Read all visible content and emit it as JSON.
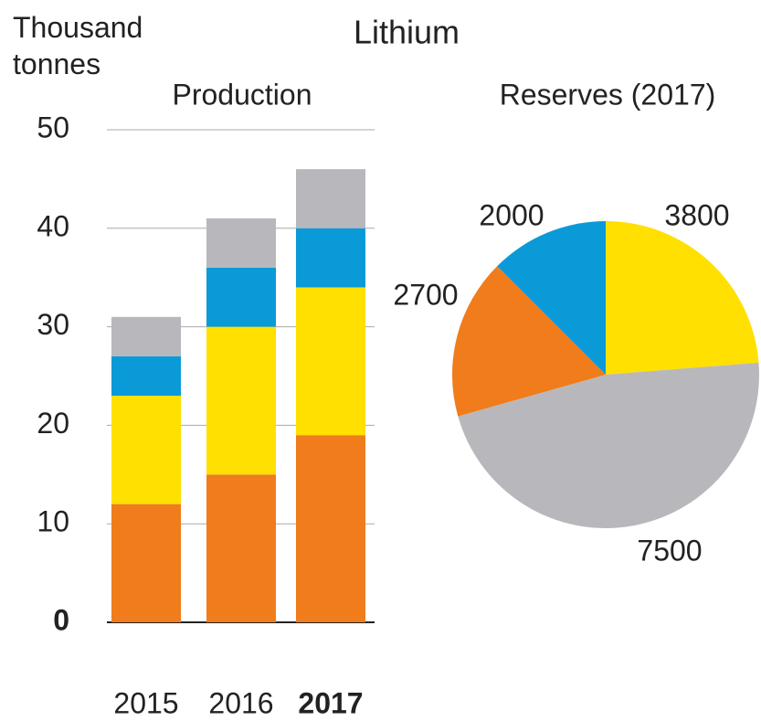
{
  "title": "Lithium",
  "chart_data": [
    {
      "type": "bar",
      "stacked": true,
      "title": "Production",
      "y_label": "Thousand tonnes",
      "categories": [
        "2015",
        "2016",
        "2017"
      ],
      "series": [
        {
          "color": "#f07c1c",
          "values": [
            12,
            15,
            19
          ]
        },
        {
          "color": "#ffe000",
          "values": [
            11,
            15,
            15
          ]
        },
        {
          "color": "#0a9ad8",
          "values": [
            4,
            6,
            6
          ]
        },
        {
          "color": "#b8b8bc",
          "values": [
            4,
            5,
            6
          ]
        }
      ],
      "ylim": [
        0,
        50
      ],
      "yticks": [
        0,
        10,
        20,
        30,
        40,
        50
      ],
      "grid": true
    },
    {
      "type": "pie",
      "title": "Reserves (2017)",
      "values": [
        3800,
        7500,
        2700,
        2000
      ],
      "colors": [
        "#ffe000",
        "#b8b8bc",
        "#f07c1c",
        "#0a9ad8"
      ]
    }
  ]
}
